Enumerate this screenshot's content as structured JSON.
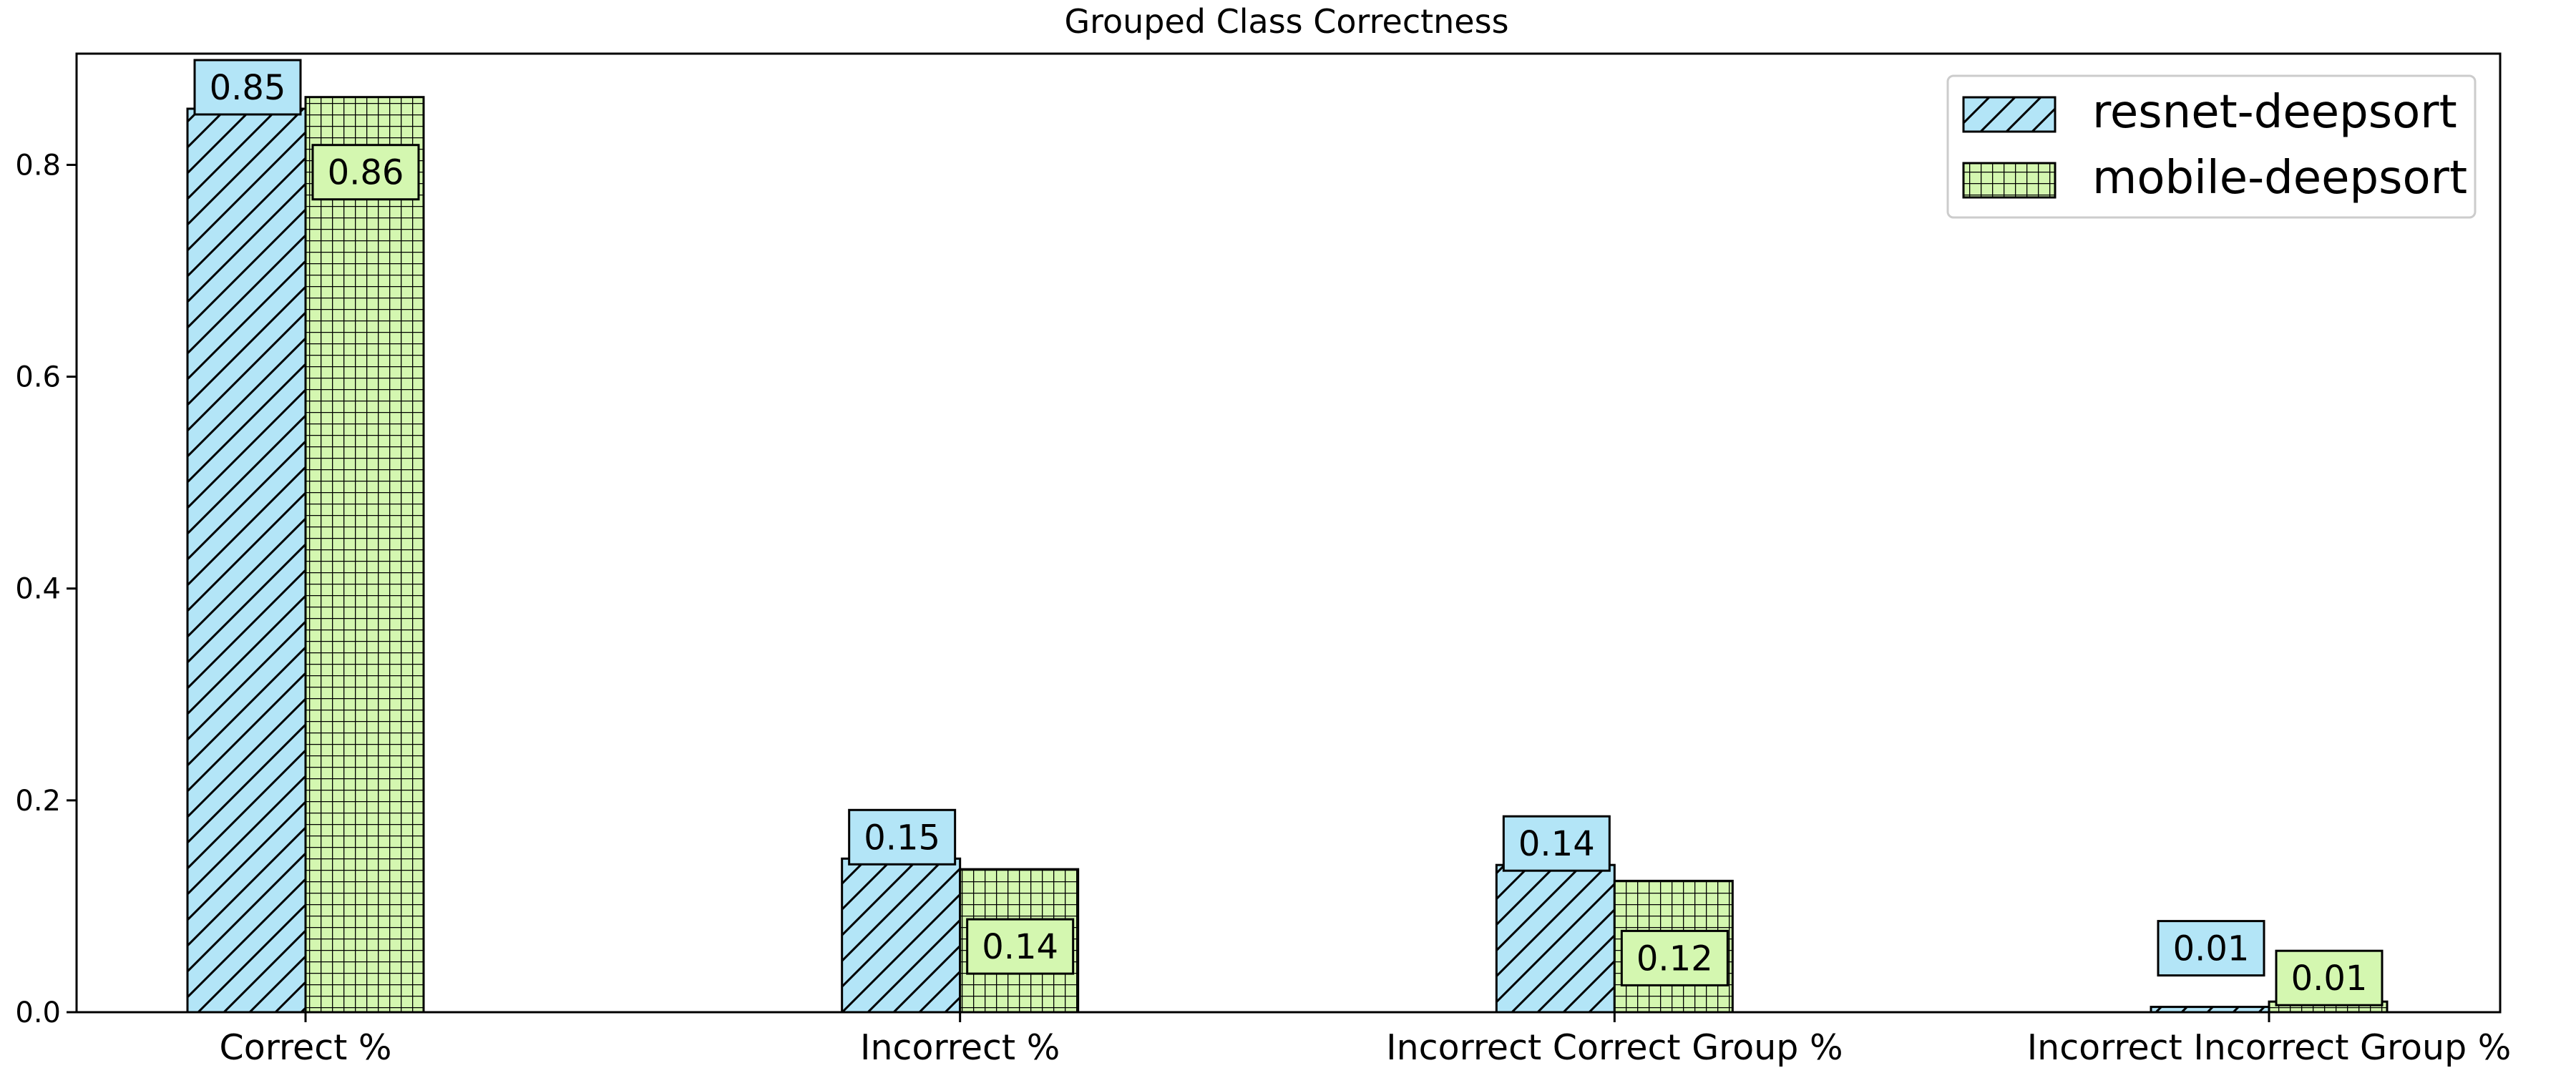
{
  "chart_data": {
    "type": "bar",
    "title": "Grouped Class Correctness",
    "xlabel": "",
    "ylabel": "",
    "ylim": [
      0,
      0.905
    ],
    "yticks": [
      0.0,
      0.2,
      0.4,
      0.6,
      0.8
    ],
    "ytick_labels": [
      "0.0",
      "0.2",
      "0.4",
      "0.6",
      "0.8"
    ],
    "categories": [
      "Correct %",
      "Incorrect %",
      "Incorrect Correct Group %",
      "Incorrect Incorrect Group %"
    ],
    "series": [
      {
        "name": "resnet-deepsort",
        "values": [
          0.853,
          0.145,
          0.139,
          0.005
        ],
        "data_labels": [
          "0.85",
          "0.15",
          "0.14",
          "0.01"
        ],
        "color": "#b3e5f7",
        "hatch": "diagonal"
      },
      {
        "name": "mobile-deepsort",
        "values": [
          0.864,
          0.135,
          0.124,
          0.01
        ],
        "data_labels": [
          "0.86",
          "0.14",
          "0.12",
          "0.01"
        ],
        "color": "#d4f7b0",
        "hatch": "grid"
      }
    ],
    "legend_position": "top-right",
    "grid": false
  }
}
